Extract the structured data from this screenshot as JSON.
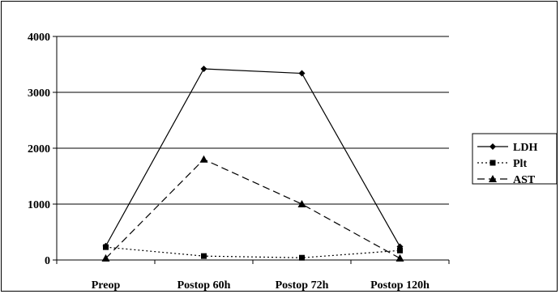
{
  "chart_data": {
    "type": "line",
    "title": "",
    "xlabel": "",
    "ylabel": "",
    "categories": [
      "Preop",
      "Postop 60h",
      "Postop 72h",
      "Postop 120h"
    ],
    "ylim": [
      0,
      4000
    ],
    "yticks": [
      "0",
      "1000",
      "2000",
      "3000",
      "4000"
    ],
    "grid": "horizontal",
    "legend_position": "right",
    "series": [
      {
        "name": "LDH",
        "values": [
          250,
          3420,
          3340,
          240
        ],
        "color": "#000000",
        "line": "solid",
        "marker": "diamond"
      },
      {
        "name": "Plt",
        "values": [
          230,
          70,
          40,
          170
        ],
        "color": "#000000",
        "line": "dotted",
        "marker": "square"
      },
      {
        "name": "AST",
        "values": [
          30,
          1800,
          1000,
          30
        ],
        "color": "#000000",
        "line": "dashed",
        "marker": "triangle"
      }
    ]
  }
}
